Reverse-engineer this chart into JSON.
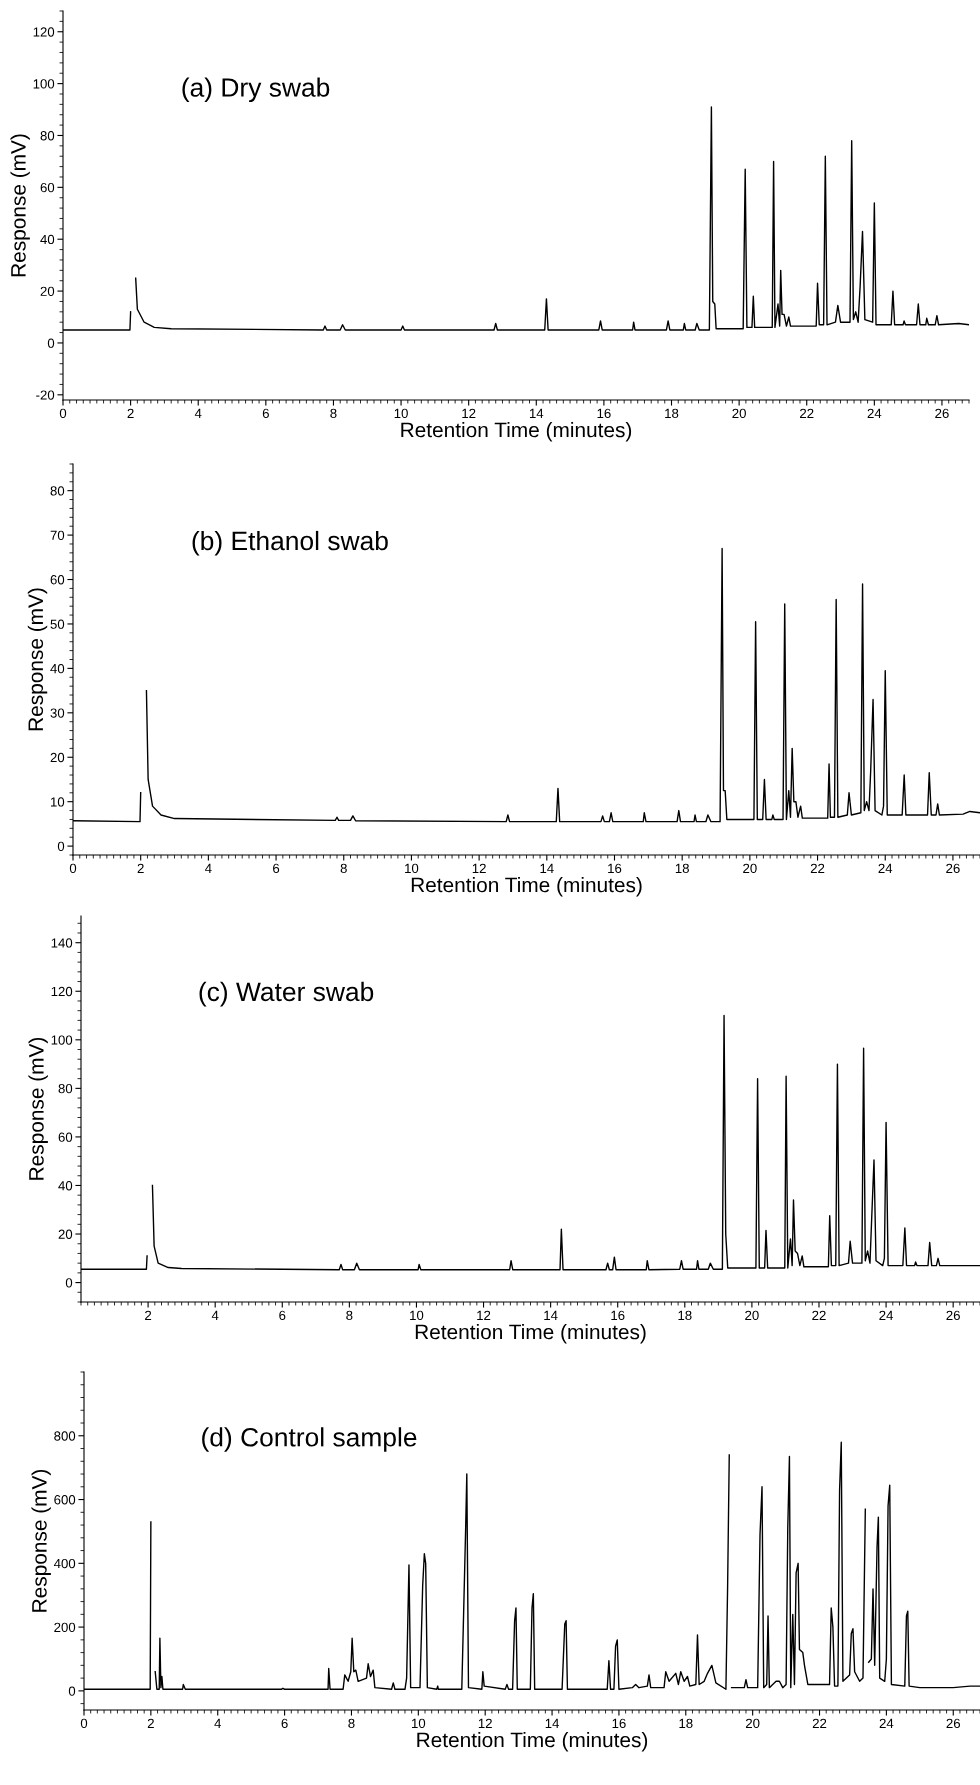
{
  "chart_data": [
    {
      "type": "line",
      "annotations": [
        "(a) Dry swab"
      ],
      "xlabel": "Retention Time (minutes)",
      "ylabel": "Response (mV)",
      "xlim": [
        0,
        26.8
      ],
      "ylim": [
        -22,
        128
      ],
      "xticks": [
        0,
        2,
        4,
        6,
        8,
        10,
        12,
        14,
        16,
        18,
        20,
        22,
        24,
        26
      ],
      "yticks": [
        -20,
        0,
        20,
        40,
        60,
        80,
        100,
        120
      ],
      "x": [
        0,
        1.98,
        2.0,
        2.03,
        2.12,
        2.15,
        2.2,
        2.4,
        2.7,
        3.2,
        7.7,
        7.75,
        7.8,
        8.2,
        8.27,
        8.35,
        10.0,
        10.05,
        10.1,
        12.75,
        12.8,
        12.85,
        14.25,
        14.3,
        14.35,
        15.85,
        15.9,
        15.95,
        16.85,
        16.88,
        16.92,
        17.85,
        17.9,
        17.95,
        18.35,
        18.38,
        18.42,
        18.7,
        18.75,
        18.82,
        19.12,
        19.18,
        19.22,
        19.28,
        19.32,
        20.12,
        20.18,
        20.23,
        20.38,
        20.42,
        20.46,
        20.98,
        21.02,
        21.06,
        21.15,
        21.2,
        21.23,
        21.27,
        21.33,
        21.4,
        21.47,
        21.52,
        22.28,
        22.32,
        22.37,
        22.5,
        22.55,
        22.6,
        22.85,
        22.92,
        23.0,
        23.28,
        23.33,
        23.38,
        23.45,
        23.52,
        23.58,
        23.65,
        23.72,
        23.95,
        24.0,
        24.05,
        24.5,
        24.55,
        24.6,
        24.85,
        24.88,
        24.92,
        25.25,
        25.3,
        25.35,
        25.52,
        25.55,
        25.6,
        25.8,
        25.85,
        25.9,
        26.5,
        26.8
      ],
      "series": [
        {
          "color": "#000000",
          "values": [
            5,
            5,
            12,
            null,
            null,
            25,
            13,
            8,
            6,
            5.5,
            5,
            6.5,
            5,
            5,
            7,
            5,
            5,
            6.5,
            5,
            5,
            7.5,
            5,
            5,
            17,
            5,
            5,
            8.5,
            5,
            5,
            8,
            5,
            5,
            8.5,
            5,
            5,
            7.5,
            5,
            5,
            7.5,
            5,
            5,
            91,
            16,
            15,
            5.5,
            5.5,
            67,
            6,
            6,
            18,
            6,
            6,
            70,
            6,
            15,
            6.5,
            28,
            11,
            11,
            6.5,
            10,
            6.5,
            6.5,
            23,
            7,
            7,
            72,
            7,
            8,
            14.5,
            8,
            8,
            78,
            9,
            12,
            8,
            22,
            43,
            9,
            8,
            54,
            7,
            7,
            20,
            7,
            7,
            8.5,
            7,
            7,
            15,
            7,
            7,
            9.5,
            7,
            7,
            10.5,
            7,
            7.5,
            7
          ]
        }
      ]
    },
    {
      "type": "line",
      "annotations": [
        "(b) Ethanol swab"
      ],
      "xlabel": "Retention Time (minutes)",
      "ylabel": "Response (mV)",
      "xlim": [
        0,
        26.8
      ],
      "ylim": [
        -2,
        86
      ],
      "xticks": [
        0,
        2,
        4,
        6,
        8,
        10,
        12,
        14,
        16,
        18,
        20,
        22,
        24,
        26
      ],
      "yticks": [
        0,
        10,
        20,
        30,
        40,
        50,
        60,
        70,
        80
      ],
      "x": [
        0,
        1.98,
        2.0,
        2.03,
        2.14,
        2.17,
        2.22,
        2.35,
        2.6,
        3.0,
        7.75,
        7.8,
        7.85,
        8.2,
        8.27,
        8.35,
        12.8,
        12.85,
        12.9,
        14.28,
        14.33,
        14.38,
        15.6,
        15.65,
        15.7,
        15.85,
        15.9,
        15.95,
        16.85,
        16.88,
        16.93,
        17.85,
        17.9,
        17.95,
        18.35,
        18.38,
        18.42,
        18.7,
        18.76,
        18.85,
        19.12,
        19.18,
        19.22,
        19.27,
        19.32,
        20.12,
        20.17,
        20.22,
        20.38,
        20.43,
        20.48,
        20.65,
        20.68,
        20.72,
        20.98,
        21.03,
        21.08,
        21.15,
        21.2,
        21.25,
        21.3,
        21.36,
        21.42,
        21.5,
        21.55,
        22.3,
        22.34,
        22.38,
        22.5,
        22.55,
        22.6,
        22.88,
        22.93,
        23.0,
        23.28,
        23.33,
        23.38,
        23.45,
        23.52,
        23.57,
        23.64,
        23.7,
        23.9,
        23.95,
        24.0,
        24.06,
        24.5,
        24.56,
        24.61,
        25.25,
        25.3,
        25.36,
        25.5,
        25.55,
        25.6,
        26.3,
        26.5,
        26.8
      ],
      "series": [
        {
          "color": "#000000",
          "values": [
            5.7,
            5.5,
            12,
            null,
            null,
            35,
            15,
            9,
            7,
            6.2,
            5.8,
            6.5,
            5.8,
            5.8,
            6.8,
            5.7,
            5.5,
            7,
            5.5,
            5.5,
            13,
            5.5,
            5.5,
            6.8,
            5.5,
            5.5,
            7.5,
            5.5,
            5.5,
            7.5,
            5.5,
            5.5,
            8,
            5.5,
            5.5,
            7,
            5.5,
            5.5,
            7,
            5.5,
            5.5,
            67,
            12.5,
            12.5,
            6,
            6,
            50.5,
            6,
            6,
            15,
            6,
            6,
            7,
            6,
            6,
            54.5,
            6,
            12.5,
            6.5,
            22,
            10,
            10,
            6.5,
            9,
            6.3,
            6.3,
            18.5,
            6.5,
            6.5,
            55.5,
            6.5,
            7,
            12,
            7,
            7.5,
            59,
            8,
            10,
            8,
            17,
            33,
            8,
            7,
            9,
            39.5,
            7,
            7,
            16,
            7,
            7,
            16.5,
            7,
            7,
            9.5,
            7,
            7.2,
            7.8,
            7.5
          ]
        }
      ]
    },
    {
      "type": "line",
      "annotations": [
        "(c) Water swab"
      ],
      "xlabel": "Retention Time (minutes)",
      "ylabel": "Response (mV)",
      "xlim": [
        0,
        26.8
      ],
      "ylim": [
        -8,
        151
      ],
      "xticks": [
        2,
        4,
        6,
        8,
        10,
        12,
        14,
        16,
        18,
        20,
        22,
        24,
        26
      ],
      "yticks": [
        0,
        20,
        40,
        60,
        80,
        100,
        120,
        140
      ],
      "x": [
        0,
        1.95,
        1.97,
        2.0,
        2.1,
        2.13,
        2.18,
        2.3,
        2.6,
        3,
        7.7,
        7.75,
        7.8,
        8.15,
        8.22,
        8.3,
        10.05,
        10.08,
        10.13,
        12.78,
        12.82,
        12.87,
        14.28,
        14.32,
        14.37,
        15.65,
        15.7,
        15.75,
        15.85,
        15.9,
        15.95,
        16.85,
        16.88,
        16.93,
        17.85,
        17.9,
        17.95,
        18.35,
        18.38,
        18.42,
        18.7,
        18.76,
        18.85,
        19.12,
        19.17,
        19.22,
        19.28,
        20.12,
        20.17,
        20.22,
        20.38,
        20.42,
        20.47,
        20.98,
        21.02,
        21.07,
        21.15,
        21.2,
        21.24,
        21.29,
        21.36,
        21.43,
        21.5,
        21.55,
        22.28,
        22.32,
        22.37,
        22.5,
        22.55,
        22.6,
        22.88,
        22.93,
        23.0,
        23.28,
        23.33,
        23.38,
        23.45,
        23.52,
        23.57,
        23.64,
        23.7,
        23.9,
        23.95,
        24.0,
        24.06,
        24.5,
        24.56,
        24.61,
        24.85,
        24.88,
        24.92,
        25.25,
        25.3,
        25.36,
        25.5,
        25.55,
        25.6,
        26.8
      ],
      "series": [
        {
          "color": "#000000",
          "values": [
            5.5,
            5.5,
            11,
            null,
            null,
            40,
            15,
            8,
            6.2,
            5.8,
            5.3,
            7.5,
            5.3,
            5.3,
            8,
            5.3,
            5.3,
            7.5,
            5.3,
            5.3,
            9,
            5.3,
            5.3,
            22,
            5.3,
            5.3,
            8,
            5.3,
            5.3,
            10.5,
            5.3,
            5.3,
            9,
            5.3,
            5.5,
            9,
            5.5,
            5.5,
            9,
            5.5,
            5.5,
            8,
            5.5,
            5.5,
            110,
            20,
            6,
            6,
            84,
            6,
            6,
            21.5,
            6,
            6,
            85,
            6,
            18,
            7,
            34,
            13,
            12,
            7,
            11,
            6.5,
            6.5,
            27.5,
            7,
            7,
            90,
            7,
            8,
            17,
            8,
            8,
            96.5,
            9,
            13,
            8,
            26,
            50.5,
            9,
            7,
            10,
            66,
            7,
            7,
            22.5,
            7,
            7,
            8.5,
            7,
            7,
            16.5,
            7,
            7,
            10,
            7,
            7
          ]
        }
      ]
    },
    {
      "type": "line",
      "annotations": [
        "(d) Control sample"
      ],
      "xlabel": "Retention Time (minutes)",
      "ylabel": "Response (mV)",
      "xlim": [
        0,
        26.8
      ],
      "ylim": [
        -60,
        1000
      ],
      "xticks": [
        0,
        2,
        4,
        6,
        8,
        10,
        12,
        14,
        16,
        18,
        20,
        22,
        24,
        26
      ],
      "yticks": [
        0,
        200,
        400,
        600,
        800
      ],
      "x": [
        0,
        1.98,
        2.0,
        2.02,
        2.1,
        2.13,
        2.18,
        2.25,
        2.27,
        2.3,
        2.33,
        2.36,
        2.95,
        2.97,
        3.03,
        5.9,
        5.95,
        6.0,
        6.9,
        7.3,
        7.32,
        7.36,
        7.75,
        7.8,
        7.9,
        7.98,
        8.02,
        8.07,
        8.13,
        8.2,
        8.45,
        8.5,
        8.57,
        8.65,
        8.7,
        9.2,
        9.25,
        9.3,
        9.6,
        9.65,
        9.72,
        9.77,
        10.05,
        10.13,
        10.18,
        10.22,
        10.27,
        10.55,
        10.58,
        10.6,
        11.3,
        11.37,
        11.42,
        11.45,
        11.5,
        11.9,
        11.93,
        11.97,
        12.6,
        12.65,
        12.7,
        12.82,
        12.88,
        12.92,
        12.96,
        13.35,
        13.4,
        13.44,
        13.48,
        14.3,
        14.38,
        14.42,
        14.46,
        15.65,
        15.7,
        15.75,
        15.85,
        15.9,
        15.95,
        16.0,
        16.4,
        16.5,
        16.6,
        16.85,
        16.9,
        16.95,
        17.35,
        17.4,
        17.5,
        17.7,
        17.78,
        17.85,
        17.95,
        18.05,
        18.12,
        18.3,
        18.35,
        18.4,
        18.55,
        18.65,
        18.78,
        18.9,
        19.2,
        19.25,
        19.3,
        19.33,
        19.37,
        19.75,
        19.8,
        19.85,
        20.15,
        20.22,
        20.28,
        20.33,
        20.42,
        20.46,
        20.5,
        20.7,
        20.8,
        20.9,
        21.0,
        21.05,
        21.1,
        21.14,
        21.2,
        21.25,
        21.3,
        21.36,
        21.4,
        21.5,
        21.55,
        21.65,
        22.3,
        22.35,
        22.4,
        22.45,
        22.55,
        22.6,
        22.65,
        22.7,
        22.9,
        22.95,
        23.0,
        23.05,
        23.2,
        23.3,
        23.37,
        23.42,
        23.47,
        23.55,
        23.6,
        23.65,
        23.72,
        23.76,
        23.8,
        23.95,
        24.0,
        24.05,
        24.1,
        24.15,
        24.55,
        24.6,
        24.64,
        24.68,
        25.0,
        26.0,
        26.5,
        26.8
      ],
      "series": [
        {
          "color": "#000000",
          "values": [
            5,
            5,
            530,
            null,
            null,
            60,
            5,
            5,
            165,
            10,
            45,
            5,
            5,
            20,
            5,
            5,
            8,
            5,
            5,
            5,
            70,
            5,
            5,
            50,
            30,
            60,
            165,
            60,
            65,
            30,
            40,
            85,
            45,
            65,
            10,
            5,
            25,
            5,
            5,
            40,
            395,
            10,
            10,
            330,
            430,
            400,
            10,
            5,
            15,
            5,
            5,
            310,
            530,
            680,
            10,
            5,
            60,
            15,
            5,
            20,
            5,
            5,
            220,
            260,
            5,
            5,
            260,
            305,
            5,
            5,
            210,
            220,
            5,
            5,
            95,
            5,
            5,
            140,
            160,
            5,
            10,
            20,
            10,
            15,
            50,
            10,
            10,
            60,
            30,
            55,
            20,
            60,
            30,
            45,
            15,
            20,
            175,
            20,
            30,
            55,
            80,
            25,
            5,
            320,
            740,
            null,
            10,
            10,
            35,
            10,
            10,
            490,
            640,
            10,
            20,
            235,
            10,
            30,
            30,
            10,
            20,
            510,
            735,
            10,
            240,
            20,
            370,
            400,
            130,
            120,
            80,
            20,
            20,
            260,
            200,
            15,
            15,
            630,
            780,
            30,
            50,
            180,
            195,
            60,
            30,
            40,
            570,
            null,
            90,
            100,
            320,
            80,
            450,
            545,
            40,
            30,
            100,
            580,
            645,
            20,
            15,
            235,
            250,
            15,
            10,
            10,
            15,
            15
          ]
        }
      ]
    }
  ]
}
